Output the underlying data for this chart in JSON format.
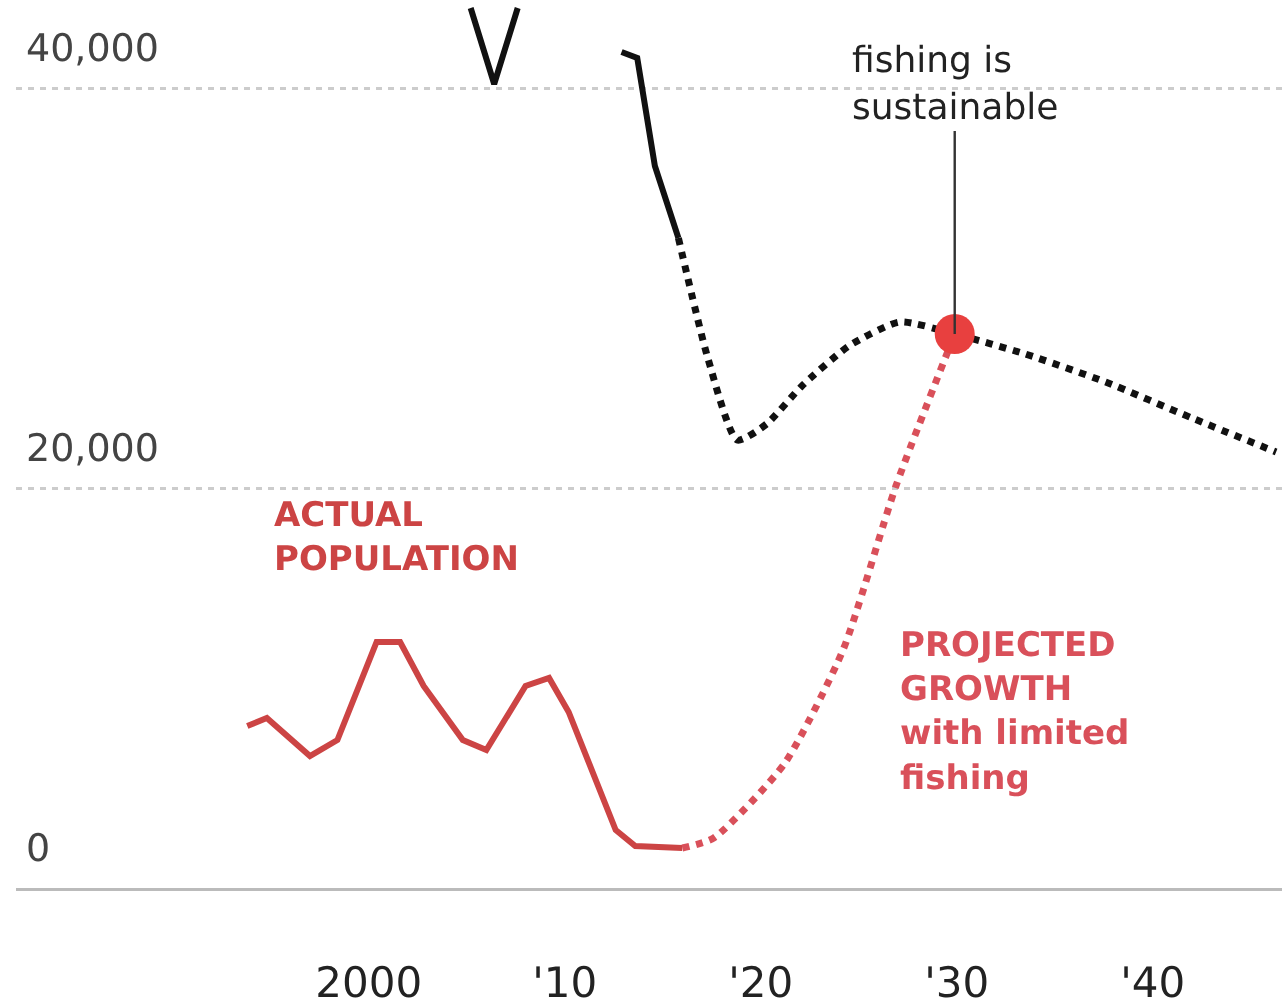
{
  "chart_data": {
    "type": "line",
    "xlim": [
      1982,
      2046.6
    ],
    "ylim": [
      0,
      44400
    ],
    "xticks": [
      {
        "value": 2000,
        "label": "2000"
      },
      {
        "value": 2010,
        "label": "'10"
      },
      {
        "value": 2020,
        "label": "'20"
      },
      {
        "value": 2030,
        "label": "'30"
      },
      {
        "value": 2040,
        "label": "'40"
      }
    ],
    "yticks": [
      {
        "value": 0,
        "label": "0"
      },
      {
        "value": 20000,
        "label": "20,000"
      },
      {
        "value": 40000,
        "label": "40,000"
      }
    ],
    "grid": "y",
    "legend": false,
    "series": [
      {
        "color": "#111111",
        "line_style": "solid",
        "x": [
          2005.2,
          2006.4,
          2007.6,
          2011.8,
          2012.9,
          2013.7,
          2014.6,
          2015.8
        ],
        "values": [
          44000,
          40200,
          44000,
          null,
          41800,
          41500,
          36100,
          32500
        ]
      },
      {
        "color": "#111111",
        "line_style": "dotted",
        "x": [
          2015.8,
          2017.3,
          2018.8,
          2020.3,
          2022.1,
          2024.5,
          2027.1,
          2029.9,
          2033.5,
          2037.6,
          2042.0,
          2046.3
        ],
        "values": [
          32500,
          26500,
          22400,
          23200,
          25100,
          27100,
          28300,
          27700,
          26700,
          25300,
          23500,
          21800
        ]
      },
      {
        "name": "ACTUAL\nPOPULATION",
        "color": "#cc4444",
        "line_style": "solid",
        "x": [
          1993.8,
          1994.8,
          1997.0,
          1998.4,
          2000.4,
          2001.6,
          2002.8,
          2004.8,
          2006.0,
          2008.0,
          2009.2,
          2010.2,
          2012.6,
          2013.6,
          2016.0
        ],
        "values": [
          8100,
          8500,
          6600,
          7400,
          12300,
          12300,
          10100,
          7400,
          6900,
          10100,
          10500,
          8800,
          2900,
          2100,
          2000
        ]
      },
      {
        "name": "PROJECTED\nGROWTH\nwith limited\nfishing",
        "color": "#d9505a",
        "line_style": "dotted",
        "x": [
          2016.0,
          2017.6,
          2021.2,
          2024.2,
          2026.9,
          2029.9
        ],
        "values": [
          2000,
          2500,
          6200,
          11900,
          20100,
          27700
        ]
      },
      {
        "type": "scatter",
        "marker": "circle",
        "color": "#e8403f",
        "x": [
          2029.9
        ],
        "values": [
          27700
        ]
      }
    ],
    "annotations": [
      {
        "text": "fishing is\nsustainable",
        "x": 2029.9,
        "y": 27700
      }
    ]
  }
}
